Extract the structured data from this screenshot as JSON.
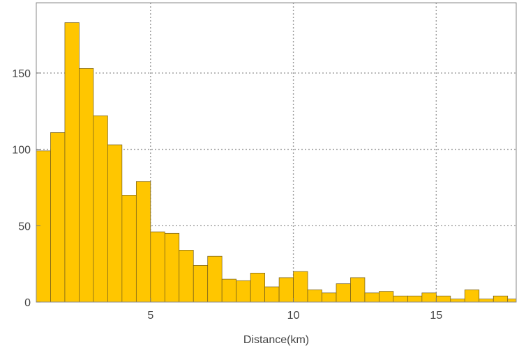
{
  "chart_data": {
    "type": "bar",
    "title": "",
    "xlabel": "Distance(km)",
    "ylabel": "",
    "bin_width": 0.5,
    "bin_start": 1.0,
    "values": [
      99,
      111,
      183,
      153,
      122,
      103,
      70,
      79,
      46,
      45,
      34,
      24,
      30,
      15,
      14,
      19,
      10,
      16,
      20,
      8,
      6,
      12,
      16,
      6,
      7,
      4,
      4,
      6,
      4,
      2,
      8,
      2,
      4,
      2
    ],
    "xlim": [
      1.0,
      17.8
    ],
    "ylim": [
      0,
      196
    ],
    "x_ticks": [
      {
        "value": 5,
        "label": "5"
      },
      {
        "value": 10,
        "label": "10"
      },
      {
        "value": 15,
        "label": "15"
      }
    ],
    "y_ticks": [
      {
        "value": 0,
        "label": "0"
      },
      {
        "value": 50,
        "label": "50"
      },
      {
        "value": 100,
        "label": "100"
      },
      {
        "value": 150,
        "label": "150"
      }
    ],
    "grid": true,
    "bar_color": "#ffc600",
    "bar_edge_color": "#6e5a1e",
    "grid_color": "#9a9a9a"
  }
}
